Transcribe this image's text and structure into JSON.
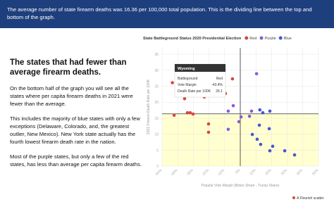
{
  "banner": {
    "text": "The average number of state firearm deaths was 16.36 per 100,000 total population. This is the dividing line between the top and bottom of the graph."
  },
  "article": {
    "heading": "The states that had fewer than average firearm deaths.",
    "paragraphs": [
      "On the bottom half of the graph you will see all the states where per capita firearm deaths in 2021 were fewer than the average.",
      "This includes the majority of blue states with only a few exceptions (Delaware, Colorado, and, the greatest outlier, New Mexico). New York state actually has the fourth lowest firearm death rate in the nation.",
      "Most of the purple states, but only a few of the red states, has less than average per capita firearm deaths."
    ]
  },
  "chart_data": {
    "type": "scatter",
    "title": "State Battleground Status 2020 Presidential Election",
    "x_label": "Popular Vote Margin (Biden Share - Trump Share)",
    "y_label": "2021 Firearm Death Rate per 100K",
    "xlim": [
      -50,
      50
    ],
    "ylim": [
      0,
      37
    ],
    "xticks": [
      {
        "value": -50,
        "label": "-50%"
      },
      {
        "value": -40,
        "label": "-40%"
      },
      {
        "value": -30,
        "label": "-30%"
      },
      {
        "value": -20,
        "label": "-20%"
      },
      {
        "value": -10,
        "label": "-10%"
      },
      {
        "value": 0,
        "label": "0%"
      },
      {
        "value": 10,
        "label": "10%"
      },
      {
        "value": 20,
        "label": "20%"
      },
      {
        "value": 30,
        "label": "30%"
      },
      {
        "value": 40,
        "label": "40%"
      },
      {
        "value": 50,
        "label": "50%"
      }
    ],
    "yticks": [
      0,
      5,
      10,
      15,
      20,
      25,
      30,
      35
    ],
    "threshold": 16.36,
    "series": [
      {
        "name": "Red",
        "color": "#d9463e",
        "x": [
          -43.4,
          -27.5,
          -25.7,
          -35.6,
          -15.3,
          -23,
          -32,
          -33.8,
          -30.2,
          -42.3,
          -20.3,
          -20.3,
          -5,
          -9.5
        ],
        "values": [
          26.1,
          24,
          22.7,
          21.1,
          24,
          21.6,
          16.7,
          16.7,
          16.3,
          15.9,
          13.2,
          10.6,
          27.3,
          22.7
        ]
      },
      {
        "name": "Purple",
        "color": "#8c5ad4",
        "x": [
          -7.7,
          -4.5,
          0.5,
          -7.7,
          -0.9,
          10.4,
          5.9,
          7.2
        ],
        "values": [
          17.2,
          18.9,
          15.4,
          11.5,
          13.9,
          28.9,
          15.6,
          17.2
        ]
      },
      {
        "name": "Blue",
        "color": "#4357d3",
        "x": [
          12.5,
          14.4,
          18.9,
          12.2,
          18.5,
          7.7,
          20.7,
          28.4,
          18.9,
          13,
          10.8,
          34.7
        ],
        "values": [
          17.6,
          16.7,
          17.2,
          12.8,
          11.7,
          9.9,
          6.2,
          4.8,
          4.8,
          6.8,
          8.4,
          3.5
        ]
      }
    ],
    "tooltip": {
      "title": "Wyoming",
      "rows": [
        [
          "Battleground",
          "Red"
        ],
        [
          "Vote Margin",
          "-43.4%"
        ],
        [
          "Death Rate per 100K",
          "26.1"
        ]
      ]
    },
    "credit": "A Flourish scatter"
  }
}
